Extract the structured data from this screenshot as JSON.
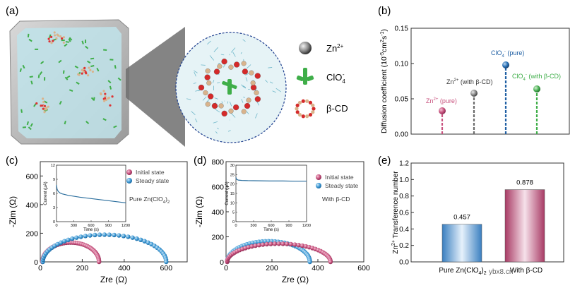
{
  "panel_labels": {
    "a": "(a)",
    "b": "(b)",
    "c": "(c)",
    "d": "(d)",
    "e": "(e)"
  },
  "legend_a": {
    "zn": "Zn",
    "zn_sup": "2+",
    "clo4": "ClO",
    "clo4_sub": "4",
    "clo4_sup": "-",
    "bcd": "β-CD"
  },
  "colors": {
    "pink": "#c8527e",
    "blue": "#3f9bd6",
    "gray": "#6b6b6b",
    "navy": "#1f5fa3",
    "green": "#3fae49",
    "trace": "#2c6f9e"
  },
  "chart_data": [
    {
      "id": "b",
      "type": "lollipop",
      "ylabel": "Diffusion coefficient (10",
      "ylabel_sup": "-5",
      "ylabel_end": "cm",
      "ylabel_sup2": "2",
      "ylabel_end2": "s",
      "ylabel_sup3": "-1",
      "ylabel_close": ")",
      "ylim": [
        0,
        0.15
      ],
      "yticks": [
        "0.00",
        "0.05",
        "0.10",
        "0.15"
      ],
      "series": [
        {
          "name": "Zn2+ (pure)",
          "label_main": "Zn",
          "label_sup": "2+",
          "label_tail": " (pure)",
          "value": 0.033
        },
        {
          "name": "Zn2+ (with β-CD)",
          "label_main": "Zn",
          "label_sup": "2+",
          "label_tail": " (with β-CD)",
          "value": 0.058
        },
        {
          "name": "ClO4- (pure)",
          "label_main": "ClO",
          "label_sub": "4",
          "label_sup": "-",
          "label_tail": " (pure)",
          "value": 0.098
        },
        {
          "name": "ClO4- (with β-CD)",
          "label_main": "ClO",
          "label_sub": "4",
          "label_sup": "-",
          "label_tail": " (with β-CD)",
          "value": 0.064
        }
      ]
    },
    {
      "id": "c",
      "type": "scatter",
      "xlabel": "Zre (Ω)",
      "ylabel": "-Zim (Ω)",
      "xlim": [
        0,
        700
      ],
      "ylim": [
        0,
        700
      ],
      "xticks": [
        "0",
        "200",
        "400",
        "600"
      ],
      "yticks": [
        "0",
        "200",
        "400",
        "600"
      ],
      "legend": [
        "Initial state",
        "Steady state"
      ],
      "note": "Pure Zn(ClO",
      "note_sub": "4",
      "note_end": ")",
      "note_sub2": "2",
      "series": [
        {
          "name": "Initial state",
          "r0": 10,
          "r1": 280,
          "ymax": 135
        },
        {
          "name": "Steady state",
          "r0": 12,
          "r1": 600,
          "ymax": 190
        }
      ],
      "inset": {
        "xlabel": "Time (s)",
        "ylabel": "Current (μA)",
        "xlim": [
          0,
          1200
        ],
        "ylim": [
          0,
          12
        ],
        "xticks": [
          "0",
          "300",
          "600",
          "900",
          "1200"
        ],
        "yticks": [
          "0",
          "3",
          "6",
          "9",
          "12"
        ],
        "trace": {
          "t": [
            0,
            10,
            30,
            60,
            100,
            200,
            400,
            600,
            800,
            1000,
            1200
          ],
          "i": [
            7.8,
            6.9,
            6.4,
            6.1,
            5.9,
            5.6,
            5.2,
            4.9,
            4.6,
            4.3,
            4.0
          ]
        }
      }
    },
    {
      "id": "d",
      "type": "scatter",
      "xlabel": "Zre (Ω)",
      "ylabel": "-Zim (Ω)",
      "xlim": [
        0,
        600
      ],
      "ylim": [
        0,
        800
      ],
      "xticks": [
        "0",
        "200",
        "400",
        "600"
      ],
      "yticks": [
        "0",
        "200",
        "400",
        "600",
        "800"
      ],
      "legend": [
        "Initial state",
        "Steady state"
      ],
      "note": "With β-CD",
      "series": [
        {
          "name": "Initial state",
          "r0": 5,
          "r1": 455,
          "ymax": 145
        },
        {
          "name": "Steady state",
          "r0": 5,
          "r1": 365,
          "ymax": 165
        }
      ],
      "inset": {
        "xlabel": "Time (s)",
        "ylabel": "Current (μA)",
        "xlim": [
          0,
          1200
        ],
        "ylim": [
          0,
          30
        ],
        "xticks": [
          "0",
          "300",
          "600",
          "900",
          "1200"
        ],
        "yticks": [
          "0",
          "5",
          "10",
          "15",
          "20",
          "25",
          "30"
        ],
        "trace": {
          "t": [
            0,
            10,
            40,
            100,
            200,
            400,
            600,
            800,
            1000,
            1200
          ],
          "i": [
            23.5,
            22.5,
            22.1,
            21.9,
            21.8,
            21.7,
            21.6,
            21.6,
            21.5,
            21.5
          ]
        }
      }
    },
    {
      "id": "e",
      "type": "bar",
      "ylabel": "Zn",
      "ylabel_sup": "2+",
      "ylabel_end": " Transference number",
      "ylim": [
        0,
        1.2
      ],
      "yticks": [
        "0.0",
        "0.2",
        "0.4",
        "0.6",
        "0.8",
        "1.0",
        "1.2"
      ],
      "categories": [
        "Pure Zn(ClO",
        "With β-CD"
      ],
      "cat1_sub": "4",
      "cat1_end": ")",
      "cat1_sub2": "2",
      "values": [
        0.457,
        0.878
      ],
      "value_labels": [
        "0.457",
        "0.878"
      ]
    }
  ],
  "watermark": "ybx8.cn"
}
